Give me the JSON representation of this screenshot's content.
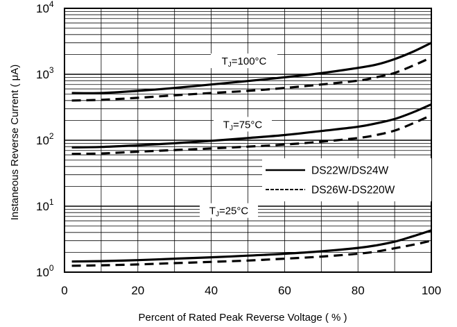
{
  "chart_data": {
    "type": "line",
    "title": "",
    "xlabel": "Percent of Rated Peak Reverse Voltage ( % )",
    "ylabel": "Instaneous Reverse Current ( μA)",
    "x_scale": "linear",
    "y_scale": "log",
    "xlim": [
      0,
      100
    ],
    "ylim": [
      1,
      10000
    ],
    "x_ticks": [
      "0",
      "20",
      "40",
      "60",
      "80",
      "100"
    ],
    "y_ticks": [
      {
        "base": "10",
        "exp": "0"
      },
      {
        "base": "10",
        "exp": "1"
      },
      {
        "base": "10",
        "exp": "2"
      },
      {
        "base": "10",
        "exp": "3"
      },
      {
        "base": "10",
        "exp": "4"
      }
    ],
    "grid": true,
    "legend": {
      "placement": "right",
      "entries": [
        {
          "name": "DS22W/DS24W",
          "style": "solid"
        },
        {
          "name": "DS26W-DS220W",
          "style": "dashed"
        }
      ]
    },
    "annotations": [
      {
        "base": "T",
        "sub": "J",
        "rest": "=100°C"
      },
      {
        "base": "T",
        "sub": "J",
        "rest": "=75°C"
      },
      {
        "base": "T",
        "sub": "J",
        "rest": "=25°C"
      }
    ],
    "series": [
      {
        "name": "DS22W/DS24W",
        "temperature": "100°C",
        "style": "solid",
        "points": [
          [
            2,
            520
          ],
          [
            10,
            520
          ],
          [
            20,
            560
          ],
          [
            30,
            620
          ],
          [
            40,
            700
          ],
          [
            50,
            790
          ],
          [
            60,
            900
          ],
          [
            70,
            1040
          ],
          [
            80,
            1250
          ],
          [
            85,
            1400
          ],
          [
            90,
            1700
          ],
          [
            95,
            2200
          ],
          [
            100,
            3000
          ]
        ]
      },
      {
        "name": "DS26W-DS220W",
        "temperature": "100°C",
        "style": "dashed",
        "points": [
          [
            2,
            400
          ],
          [
            10,
            410
          ],
          [
            20,
            440
          ],
          [
            30,
            480
          ],
          [
            40,
            520
          ],
          [
            50,
            560
          ],
          [
            60,
            620
          ],
          [
            70,
            700
          ],
          [
            80,
            800
          ],
          [
            85,
            900
          ],
          [
            90,
            1050
          ],
          [
            95,
            1350
          ],
          [
            100,
            1800
          ]
        ]
      },
      {
        "name": "DS22W/DS24W",
        "temperature": "75°C",
        "style": "solid",
        "points": [
          [
            2,
            78
          ],
          [
            10,
            79
          ],
          [
            20,
            84
          ],
          [
            30,
            90
          ],
          [
            40,
            98
          ],
          [
            50,
            108
          ],
          [
            60,
            120
          ],
          [
            70,
            138
          ],
          [
            80,
            160
          ],
          [
            85,
            180
          ],
          [
            90,
            210
          ],
          [
            95,
            265
          ],
          [
            100,
            350
          ]
        ]
      },
      {
        "name": "DS26W-DS220W",
        "temperature": "75°C",
        "style": "dashed",
        "points": [
          [
            2,
            62
          ],
          [
            10,
            63
          ],
          [
            20,
            67
          ],
          [
            30,
            71
          ],
          [
            40,
            75
          ],
          [
            50,
            80
          ],
          [
            60,
            86
          ],
          [
            70,
            95
          ],
          [
            80,
            108
          ],
          [
            85,
            120
          ],
          [
            90,
            140
          ],
          [
            95,
            180
          ],
          [
            100,
            240
          ]
        ]
      },
      {
        "name": "DS22W/DS24W",
        "temperature": "25°C",
        "style": "solid",
        "points": [
          [
            2,
            1.45
          ],
          [
            10,
            1.47
          ],
          [
            20,
            1.52
          ],
          [
            30,
            1.6
          ],
          [
            40,
            1.68
          ],
          [
            50,
            1.78
          ],
          [
            60,
            1.9
          ],
          [
            70,
            2.07
          ],
          [
            80,
            2.33
          ],
          [
            85,
            2.55
          ],
          [
            90,
            2.9
          ],
          [
            95,
            3.5
          ],
          [
            100,
            4.3
          ]
        ]
      },
      {
        "name": "DS26W-DS220W",
        "temperature": "25°C",
        "style": "dashed",
        "points": [
          [
            2,
            1.25
          ],
          [
            10,
            1.27
          ],
          [
            20,
            1.31
          ],
          [
            30,
            1.37
          ],
          [
            40,
            1.43
          ],
          [
            50,
            1.5
          ],
          [
            60,
            1.6
          ],
          [
            70,
            1.72
          ],
          [
            80,
            1.9
          ],
          [
            85,
            2.05
          ],
          [
            90,
            2.3
          ],
          [
            95,
            2.6
          ],
          [
            100,
            3.0
          ]
        ]
      }
    ]
  }
}
